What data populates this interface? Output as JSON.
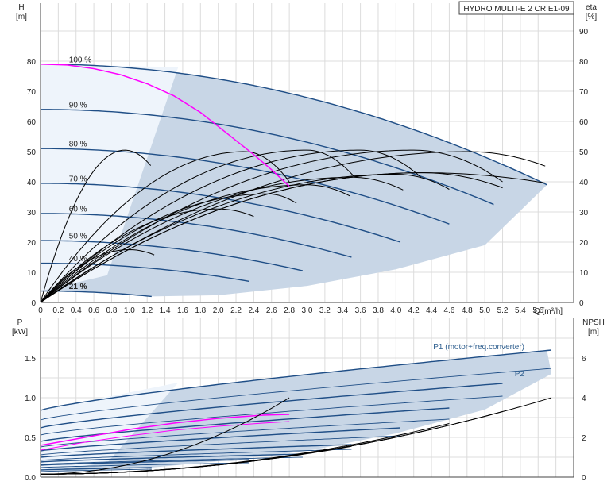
{
  "chart_data": [
    {
      "type": "line",
      "title": "HYDRO MULTI-E 2 CRIE1-09",
      "xlabel": "Q [m³/h]",
      "ylabel": "H [m]",
      "y2label": "eta [%]",
      "ylabel_parts": [
        "H",
        "[m]"
      ],
      "y2label_parts": [
        "eta",
        "[%]"
      ],
      "xlim": [
        0,
        6.0
      ],
      "ylim": [
        0,
        90
      ],
      "y2lim": [
        0,
        90
      ],
      "grid": true,
      "x_ticks": [
        "0",
        "0.2",
        "0.4",
        "0.6",
        "0.8",
        "1.0",
        "1.2",
        "1.4",
        "1.6",
        "1.8",
        "2.0",
        "2.2",
        "2.4",
        "2.6",
        "2.8",
        "3.0",
        "3.2",
        "3.4",
        "3.6",
        "3.8",
        "4.0",
        "4.2",
        "4.4",
        "4.6",
        "4.8",
        "5.0",
        "5.2",
        "5.4",
        "5.6"
      ],
      "y_ticks": [
        "0",
        "10",
        "20",
        "30",
        "40",
        "50",
        "60",
        "70",
        "80"
      ],
      "y2_ticks": [
        "0",
        "10",
        "20",
        "30",
        "40",
        "50",
        "60",
        "70",
        "80",
        "90"
      ],
      "speed_labels": [
        "100 %",
        "90 %",
        "80 %",
        "70 %",
        "60 %",
        "50 %",
        "40 %",
        "21 %"
      ],
      "speed_curves": [
        {
          "speed": 1.0,
          "shutoff_h": 79,
          "q_max": 5.7,
          "h_end": 39
        },
        {
          "speed": 0.9,
          "shutoff_h": 64,
          "q_max": 5.1,
          "h_end": 32.5
        },
        {
          "speed": 0.8,
          "shutoff_h": 51,
          "q_max": 4.6,
          "h_end": 26
        },
        {
          "speed": 0.7,
          "shutoff_h": 39.5,
          "q_max": 4.05,
          "h_end": 20
        },
        {
          "speed": 0.6,
          "shutoff_h": 29.5,
          "q_max": 3.5,
          "h_end": 15
        },
        {
          "speed": 0.5,
          "shutoff_h": 20.5,
          "q_max": 2.95,
          "h_end": 10.5
        },
        {
          "speed": 0.4,
          "shutoff_h": 13,
          "q_max": 2.35,
          "h_end": 7
        },
        {
          "speed": 0.21,
          "shutoff_h": 3.8,
          "q_max": 1.25,
          "h_end": 2
        }
      ],
      "duty_curve": {
        "q": [
          0,
          0.3,
          0.6,
          0.9,
          1.2,
          1.5,
          1.8,
          2.1,
          2.4,
          2.6,
          2.8
        ],
        "h": [
          79,
          78.7,
          77.5,
          75.5,
          72.5,
          68.5,
          63,
          56,
          49,
          44,
          38.5
        ]
      },
      "eta_curves": [
        {
          "peak_q": 0.95,
          "peak_eta": 50.5,
          "q_end": 1.25,
          "eta_end": 45
        },
        {
          "peak_q": 2.3,
          "peak_eta": 50,
          "q_end": 2.8,
          "eta_end": 40
        },
        {
          "peak_q": 3.0,
          "peak_eta": 50.5,
          "q_end": 3.55,
          "eta_end": 41
        },
        {
          "peak_q": 3.6,
          "peak_eta": 50.5,
          "q_end": 4.3,
          "eta_end": 41
        },
        {
          "peak_q": 4.2,
          "peak_eta": 50.5,
          "q_end": 5.2,
          "eta_end": 40
        },
        {
          "peak_q": 4.8,
          "peak_eta": 50,
          "q_end": 5.7,
          "eta_end": 45
        },
        {
          "peak_q": 1.0,
          "peak_eta": 17.5,
          "q_end": 1.3,
          "eta_end": 15.5
        },
        {
          "peak_q": 2.0,
          "peak_eta": 31,
          "q_end": 2.4,
          "eta_end": 28.5
        },
        {
          "peak_q": 2.55,
          "peak_eta": 36,
          "q_end": 2.9,
          "eta_end": 32.5
        },
        {
          "peak_q": 3.0,
          "peak_eta": 39,
          "q_end": 3.5,
          "eta_end": 35
        },
        {
          "peak_q": 3.5,
          "peak_eta": 41.5,
          "q_end": 4.1,
          "eta_end": 37
        },
        {
          "peak_q": 4.0,
          "peak_eta": 42.5,
          "q_end": 4.6,
          "eta_end": 37.5
        },
        {
          "peak_q": 4.3,
          "peak_eta": 43,
          "q_end": 5.2,
          "eta_end": 38
        },
        {
          "peak_q": 4.3,
          "peak_eta": 43,
          "q_end": 5.7,
          "eta_end": 39.5
        }
      ]
    },
    {
      "type": "line",
      "xlabel": "",
      "ylabel": "P [kW]",
      "y2label": "NPSH [m]",
      "ylabel_parts": [
        "P",
        "[kW]"
      ],
      "y2label_parts": [
        "NPSH",
        "[m]"
      ],
      "xlim": [
        0,
        6.0
      ],
      "ylim": [
        0,
        1.75
      ],
      "y2lim": [
        0,
        7
      ],
      "grid": true,
      "y_ticks": [
        "0.0",
        "0.5",
        "1.0",
        "1.5"
      ],
      "y2_ticks": [
        "0",
        "2",
        "4",
        "6"
      ],
      "series_labels": [
        "P1 (motor+freq.converter)",
        "P2"
      ],
      "p1_curves": [
        {
          "p0": 0.84,
          "q_end": 5.75,
          "p_end": 1.6
        },
        {
          "p0": 0.62,
          "q_end": 5.2,
          "p_end": 1.18
        },
        {
          "p0": 0.45,
          "q_end": 4.6,
          "p_end": 0.87
        },
        {
          "p0": 0.33,
          "q_end": 4.05,
          "p_end": 0.62
        },
        {
          "p0": 0.25,
          "q_end": 3.5,
          "p_end": 0.41
        },
        {
          "p0": 0.19,
          "q_end": 2.95,
          "p_end": 0.29
        },
        {
          "p0": 0.15,
          "q_end": 2.35,
          "p_end": 0.22
        },
        {
          "p0": 0.09,
          "q_end": 1.25,
          "p_end": 0.12
        }
      ],
      "p2_curves": [
        {
          "p0": 0.72,
          "q_end": 5.75,
          "p_end": 1.37
        },
        {
          "p0": 0.53,
          "q_end": 5.2,
          "p_end": 1.02
        },
        {
          "p0": 0.38,
          "q_end": 4.6,
          "p_end": 0.73
        },
        {
          "p0": 0.28,
          "q_end": 4.05,
          "p_end": 0.52
        },
        {
          "p0": 0.21,
          "q_end": 3.5,
          "p_end": 0.35
        },
        {
          "p0": 0.16,
          "q_end": 2.95,
          "p_end": 0.25
        },
        {
          "p0": 0.12,
          "q_end": 2.35,
          "p_end": 0.18
        },
        {
          "p0": 0.07,
          "q_end": 1.25,
          "p_end": 0.1
        }
      ],
      "p1_duty": {
        "q": [
          0,
          0.5,
          1.0,
          1.5,
          2.0,
          2.5,
          2.8
        ],
        "p": [
          0.4,
          0.5,
          0.6,
          0.68,
          0.74,
          0.78,
          0.79
        ]
      },
      "p2_duty": {
        "q": [
          0,
          0.5,
          1.0,
          1.5,
          2.0,
          2.5,
          2.8
        ],
        "p": [
          0.34,
          0.44,
          0.52,
          0.59,
          0.64,
          0.68,
          0.7
        ]
      },
      "npsh_curves": [
        {
          "q_end": 5.75,
          "npsh_end": 4.0
        },
        {
          "q_end": 5.2,
          "npsh_end": 3.3
        },
        {
          "q_end": 4.6,
          "npsh_end": 2.7
        },
        {
          "q_end": 4.05,
          "npsh_end": 2.05
        },
        {
          "q_end": 3.5,
          "npsh_end": 1.55
        },
        {
          "q_end": 2.95,
          "npsh_end": 1.15
        },
        {
          "q_end": 2.35,
          "npsh_end": 0.8
        },
        {
          "q_end": 1.25,
          "npsh_end": 0.35
        },
        {
          "q_end": 2.8,
          "npsh_end": 4.0
        }
      ]
    }
  ],
  "colors": {
    "envelope": "#c8d6e6",
    "envelope_light": "#eef4fb",
    "speed_curve": "#1f4e86",
    "eta_curve": "#000000",
    "duty_curve": "#ff00ff",
    "grid": "#dcdcdc",
    "axis": "#444444",
    "label": "#2f5f8f"
  }
}
